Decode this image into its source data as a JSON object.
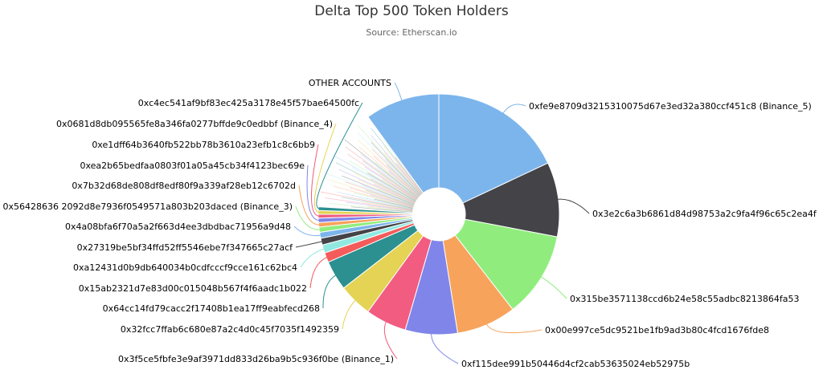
{
  "chart_data": {
    "type": "pie",
    "title": "Delta Top 500 Token Holders",
    "subtitle": "Source: Etherscan.io",
    "inner_radius_ratio": 0.22,
    "slices": [
      {
        "label": "0xfe9e8709d3215310075d67e3ed32a380ccf451c8 (Binance_5)",
        "value": 18.0,
        "color": "#7cb5ec"
      },
      {
        "label": "0x3e2c6a3b6861d84d98753a2c9fa4f96c65c2ea4f",
        "value": 10.0,
        "color": "#434348"
      },
      {
        "label": "0x315be3571138ccd6b24e58c55adbc8213864fa53",
        "value": 11.5,
        "color": "#90ed7d"
      },
      {
        "label": "0x00e997ce5dc9521be1fb9ad3b80c4fcd1676fde8",
        "value": 8.0,
        "color": "#f7a35c"
      },
      {
        "label": "0xf115dee991b50446d4cf2cab53635024eb52975b",
        "value": 7.0,
        "color": "#8085e9"
      },
      {
        "label": "0x3f5ce5fbfe3e9af3971dd833d26ba9b5c936f0be (Binance_1)",
        "value": 5.5,
        "color": "#f15c80"
      },
      {
        "label": "0x32fcc7ffab6c680e87a2c4d0c45f7035f1492359",
        "value": 4.5,
        "color": "#e4d354"
      },
      {
        "label": "0x64cc14fd79cacc2f17408b1ea17ff9eabfecd268",
        "value": 4.0,
        "color": "#2b908f"
      },
      {
        "label": "0x15ab2321d7e83d00c015048b567f4f6aadc1b022",
        "value": 1.3,
        "color": "#f45b5b"
      },
      {
        "label": "0xa12431d0b9db640034b0cdfcccf9cce161c62bc4",
        "value": 1.1,
        "color": "#91e8e1"
      },
      {
        "label": "0x27319be5bf34ffd52ff5546ebe7f347665c27acf",
        "value": 0.9,
        "color": "#434348"
      },
      {
        "label": "0x4a08bfa6f70a5a2f663d4ee3dbdbac71956a9d48",
        "value": 0.8,
        "color": "#7cb5ec"
      },
      {
        "label": "0x56428636 2092d8e7936f0549571a803b203daced (Binance_3)",
        "value": 0.7,
        "color": "#90ed7d"
      },
      {
        "label": "0x7b32d68de808df8edf80f9a339af28eb12c6702d",
        "value": 0.6,
        "color": "#f7a35c"
      },
      {
        "label": "0xea2b65bedfaa0803f01a05a45cb34f4123bec69e",
        "value": 0.6,
        "color": "#8085e9"
      },
      {
        "label": "0xe1dff64b3640fb522bb78b3610a23efb1c8c6bb9",
        "value": 0.5,
        "color": "#f15c80"
      },
      {
        "label": "0x0681d8db095565fe8a346fa0277bffde9c0edbbf (Binance_4)",
        "value": 0.5,
        "color": "#e4d354"
      },
      {
        "label": "0xc4ec541af9bf83ec425a3178e45f57bae64500fc",
        "value": 0.5,
        "color": "#2b908f"
      },
      {
        "label": "",
        "value": 14.0,
        "color": "#ffffff",
        "fan": true
      },
      {
        "label": "OTHER ACCOUNTS",
        "value": 10.0,
        "color": "#7cb5ec"
      }
    ]
  }
}
